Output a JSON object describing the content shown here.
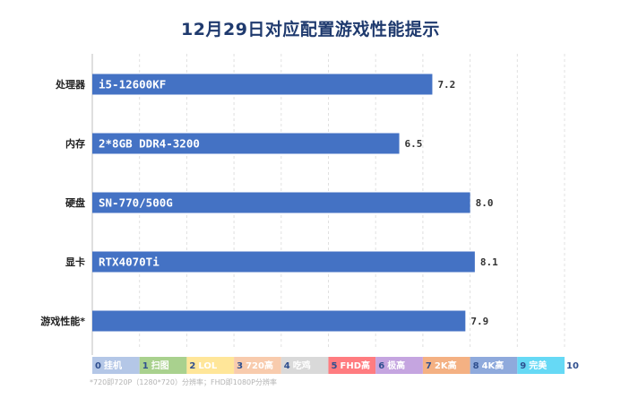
{
  "chart_data": {
    "type": "bar",
    "orientation": "horizontal",
    "title": "12月29日对应配置游戏性能提示",
    "categories": [
      "处理器",
      "内存",
      "硬盘",
      "显卡",
      "游戏性能*"
    ],
    "bar_texts": [
      "i5-12600KF",
      "2*8GB DDR4-3200",
      "SN-770/500G",
      "RTX4070Ti",
      ""
    ],
    "values": [
      7.2,
      6.5,
      8.0,
      8.1,
      7.9
    ],
    "value_labels": [
      "7.2",
      "6.5",
      "8.0",
      "8.1",
      "7.9"
    ],
    "xlim": [
      0,
      10
    ],
    "bar_color": "#4472c4",
    "grid": true,
    "scale_legend": [
      {
        "num": "0",
        "label": "挂机",
        "color": "#b4c7e7"
      },
      {
        "num": "1",
        "label": "扫图",
        "color": "#a9d18e"
      },
      {
        "num": "2",
        "label": "LOL",
        "color": "#ffe699"
      },
      {
        "num": "3",
        "label": "720高",
        "color": "#f8cbad"
      },
      {
        "num": "4",
        "label": "吃鸡",
        "color": "#d9d9d9"
      },
      {
        "num": "5",
        "label": "FHD高",
        "color": "#ff7c80"
      },
      {
        "num": "6",
        "label": "极高",
        "color": "#c5a5e0"
      },
      {
        "num": "7",
        "label": "2K高",
        "color": "#f4b183"
      },
      {
        "num": "8",
        "label": "4K高",
        "color": "#8faadc"
      },
      {
        "num": "9",
        "label": "完美",
        "color": "#66d9f5"
      }
    ],
    "scale_end": "10",
    "footnote": "*720即720P（1280*720）分辨率；FHD即1080P分辨率"
  }
}
